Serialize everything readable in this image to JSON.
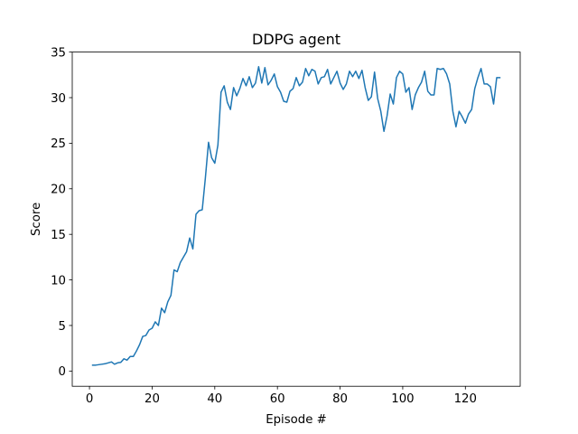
{
  "chart_data": {
    "type": "line",
    "title": "DDPG agent",
    "xlabel": "Episode #",
    "ylabel": "Score",
    "xlim": [
      -5.5,
      137.5
    ],
    "ylim": [
      -1.67,
      35
    ],
    "xticks": [
      0,
      20,
      40,
      60,
      80,
      100,
      120
    ],
    "yticks": [
      0,
      5,
      10,
      15,
      20,
      25,
      30,
      35
    ],
    "grid": false,
    "legend": "none",
    "colors": {
      "line": "#1f77b4",
      "axes": "#000000",
      "background": "#ffffff"
    },
    "series": [
      {
        "x": [
          1,
          2,
          3,
          4,
          5,
          6,
          7,
          8,
          9,
          10,
          11,
          12,
          13,
          14,
          15,
          16,
          17,
          18,
          19,
          20,
          21,
          22,
          23,
          24,
          25,
          26,
          27,
          28,
          29,
          30,
          31,
          32,
          33,
          34,
          35,
          36,
          37,
          38,
          39,
          40,
          41,
          42,
          43,
          44,
          45,
          46,
          47,
          48,
          49,
          50,
          51,
          52,
          53,
          54,
          55,
          56,
          57,
          58,
          59,
          60,
          61,
          62,
          63,
          64,
          65,
          66,
          67,
          68,
          69,
          70,
          71,
          72,
          73,
          74,
          75,
          76,
          77,
          78,
          79,
          80,
          81,
          82,
          83,
          84,
          85,
          86,
          87,
          88,
          89,
          90,
          91,
          92,
          93,
          94,
          95,
          96,
          97,
          98,
          99,
          100,
          101,
          102,
          103,
          104,
          105,
          106,
          107,
          108,
          109,
          110,
          111,
          112,
          113,
          114,
          115,
          116,
          117,
          118,
          119,
          120,
          121,
          122,
          123,
          124,
          125,
          126,
          127,
          128,
          129,
          130,
          131
        ],
        "values": [
          0.65,
          0.65,
          0.7,
          0.75,
          0.8,
          0.9,
          1.0,
          0.75,
          0.9,
          0.95,
          1.35,
          1.2,
          1.6,
          1.6,
          2.2,
          2.9,
          3.8,
          3.9,
          4.5,
          4.7,
          5.4,
          5.0,
          6.9,
          6.4,
          7.6,
          8.3,
          11.1,
          10.9,
          11.9,
          12.5,
          13.1,
          14.6,
          13.4,
          17.2,
          17.6,
          17.7,
          21.2,
          25.1,
          23.4,
          22.8,
          24.8,
          30.6,
          31.3,
          29.5,
          28.7,
          31.1,
          30.2,
          31.0,
          32.1,
          31.3,
          32.3,
          31.1,
          31.6,
          33.4,
          31.6,
          33.3,
          31.4,
          31.9,
          32.6,
          31.2,
          30.6,
          29.6,
          29.5,
          30.7,
          31.0,
          32.2,
          31.3,
          31.7,
          33.2,
          32.4,
          33.1,
          32.9,
          31.5,
          32.2,
          32.3,
          33.1,
          31.5,
          32.2,
          32.9,
          31.6,
          30.9,
          31.5,
          32.9,
          32.3,
          32.9,
          32.1,
          33.0,
          31.1,
          29.7,
          30.1,
          32.8,
          29.9,
          28.5,
          26.3,
          28.0,
          30.4,
          29.3,
          32.2,
          32.9,
          32.6,
          30.6,
          31.1,
          28.7,
          30.3,
          31.1,
          31.7,
          32.9,
          30.7,
          30.3,
          30.3,
          33.2,
          33.1,
          33.2,
          32.6,
          31.5,
          28.5,
          26.8,
          28.5,
          27.9,
          27.2,
          28.2,
          28.7,
          31.0,
          32.2,
          33.2,
          31.5,
          31.5,
          31.2,
          29.3,
          32.2,
          32.2
        ]
      }
    ]
  }
}
